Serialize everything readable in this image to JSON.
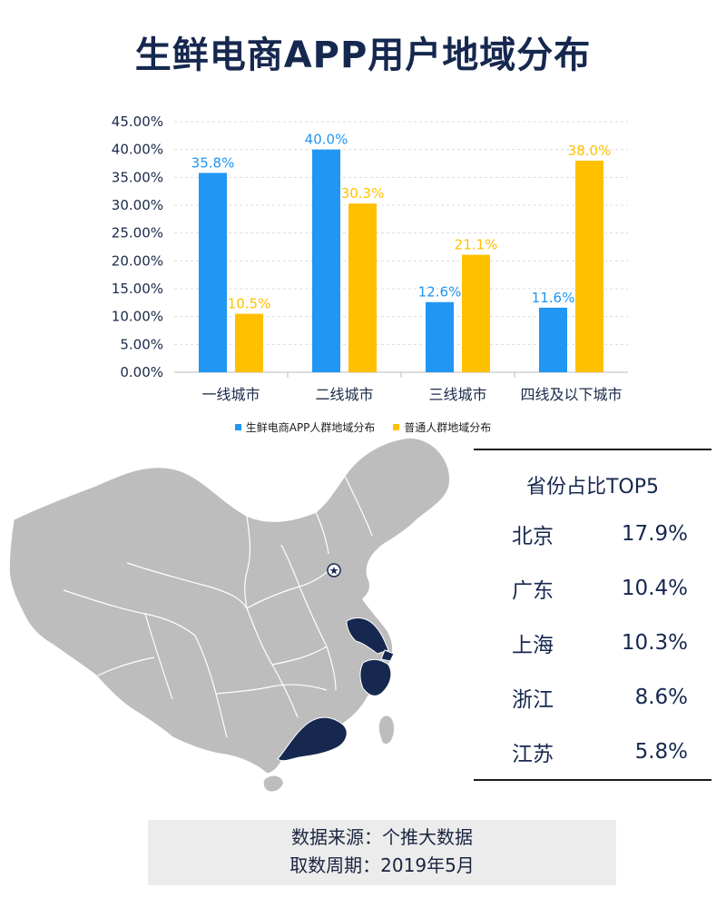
{
  "title": "生鲜电商APP用户地域分布",
  "chart_data": {
    "type": "bar",
    "categories": [
      "一线城市",
      "二线城市",
      "三线城市",
      "四线及以下城市"
    ],
    "series": [
      {
        "name": "生鲜电商APP人群地域分布",
        "values": [
          35.8,
          40.0,
          12.6,
          11.6
        ],
        "color": "#2196f3"
      },
      {
        "name": "普通人群地域分布",
        "values": [
          10.5,
          30.3,
          21.1,
          38.0
        ],
        "color": "#ffc000"
      }
    ],
    "data_labels": [
      [
        "35.8%",
        "40.0%",
        "12.6%",
        "11.6%"
      ],
      [
        "10.5%",
        "30.3%",
        "21.1%",
        "38.0%"
      ]
    ],
    "y_ticks": [
      "0.00%",
      "5.00%",
      "10.00%",
      "15.00%",
      "20.00%",
      "25.00%",
      "30.00%",
      "35.00%",
      "40.00%",
      "45.00%"
    ],
    "ylim": [
      0,
      45
    ],
    "grid": true,
    "legend_position": "bottom"
  },
  "map": {
    "highlight_color": "#16284f",
    "base_color": "#bdbdbd",
    "capital_marker": "star-icon",
    "highlighted_regions": [
      "广东",
      "上海",
      "浙江",
      "江苏"
    ]
  },
  "top5": {
    "title": "省份占比TOP5",
    "rows": [
      {
        "province": "北京",
        "value": "17.9%"
      },
      {
        "province": "广东",
        "value": "10.4%"
      },
      {
        "province": "上海",
        "value": "10.3%"
      },
      {
        "province": "浙江",
        "value": "8.6%"
      },
      {
        "province": "江苏",
        "value": "5.8%"
      }
    ]
  },
  "source": {
    "line1": "数据来源：个推大数据",
    "line2": "取数周期：2019年5月"
  }
}
